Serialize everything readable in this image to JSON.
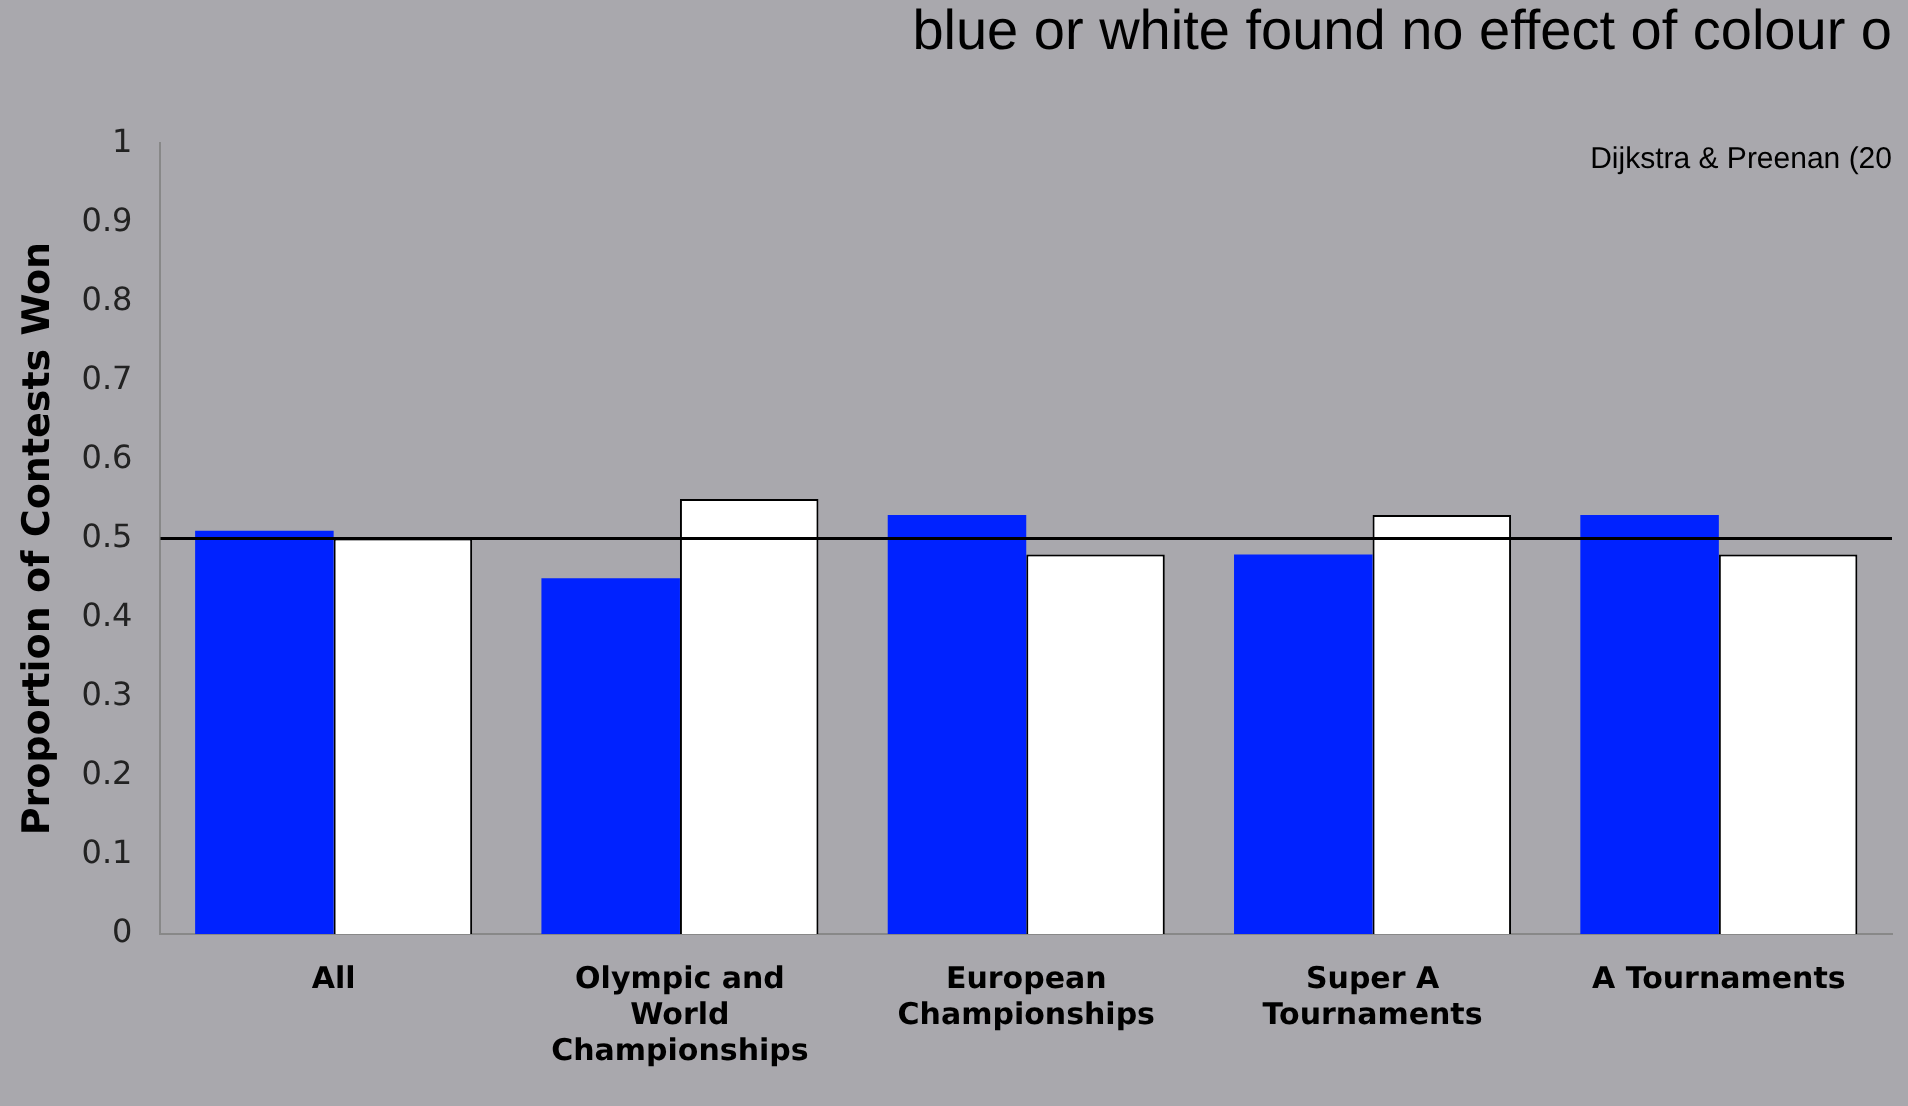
{
  "chart_data": {
    "type": "bar",
    "title": "blue or white found no effect of colour o",
    "ylabel": "Proportion of Contests Won",
    "annotations": [
      "Dijkstra & Preenan (20"
    ],
    "categories": [
      "All",
      "Olympic and World Championships",
      "European Championships",
      "Super A Tournaments",
      "A Tournaments"
    ],
    "series": [
      {
        "color": "#0022ff",
        "values": [
          0.51,
          0.45,
          0.53,
          0.48,
          0.53
        ]
      },
      {
        "color": "#ffffff",
        "values": [
          0.5,
          0.55,
          0.48,
          0.53,
          0.48
        ]
      }
    ],
    "ylim": [
      0,
      1
    ],
    "yticks": [
      0,
      0.1,
      0.2,
      0.3,
      0.4,
      0.5,
      0.6,
      0.7,
      0.8,
      0.9,
      1
    ],
    "ref_lines": [
      {
        "axis": "y",
        "value": 0.5,
        "color": "#000000"
      }
    ],
    "grid": false,
    "legend": false
  }
}
